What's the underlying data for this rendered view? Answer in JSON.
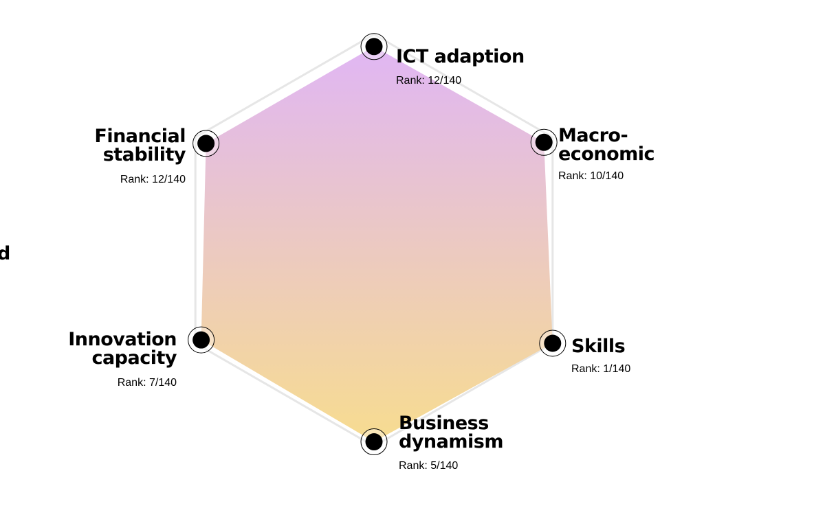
{
  "chart_data": {
    "type": "radar",
    "max_rank": 140,
    "axes": [
      {
        "label_lines": [
          "ICT adaption"
        ],
        "rank_text": "Rank: 12/140",
        "rank": 12
      },
      {
        "label_lines": [
          "Macro-",
          "economic"
        ],
        "rank_text": "Rank: 10/140",
        "rank": 10
      },
      {
        "label_lines": [
          "Skills"
        ],
        "rank_text": "Rank: 1/140",
        "rank": 1
      },
      {
        "label_lines": [
          "Business",
          "dynamism"
        ],
        "rank_text": "Rank: 5/140",
        "rank": 5
      },
      {
        "label_lines": [
          "Innovation",
          "capacity"
        ],
        "rank_text": "Rank: 7/140",
        "rank": 7
      },
      {
        "label_lines": [
          "Financial",
          "stability"
        ],
        "rank_text": "Rank: 12/140",
        "rank": 12
      }
    ],
    "colors": {
      "fill_top": "#e0b6f4",
      "fill_bottom": "#f7dc90",
      "outline": "#e6e6e6",
      "marker": "#000000"
    }
  },
  "partial_text": "d"
}
